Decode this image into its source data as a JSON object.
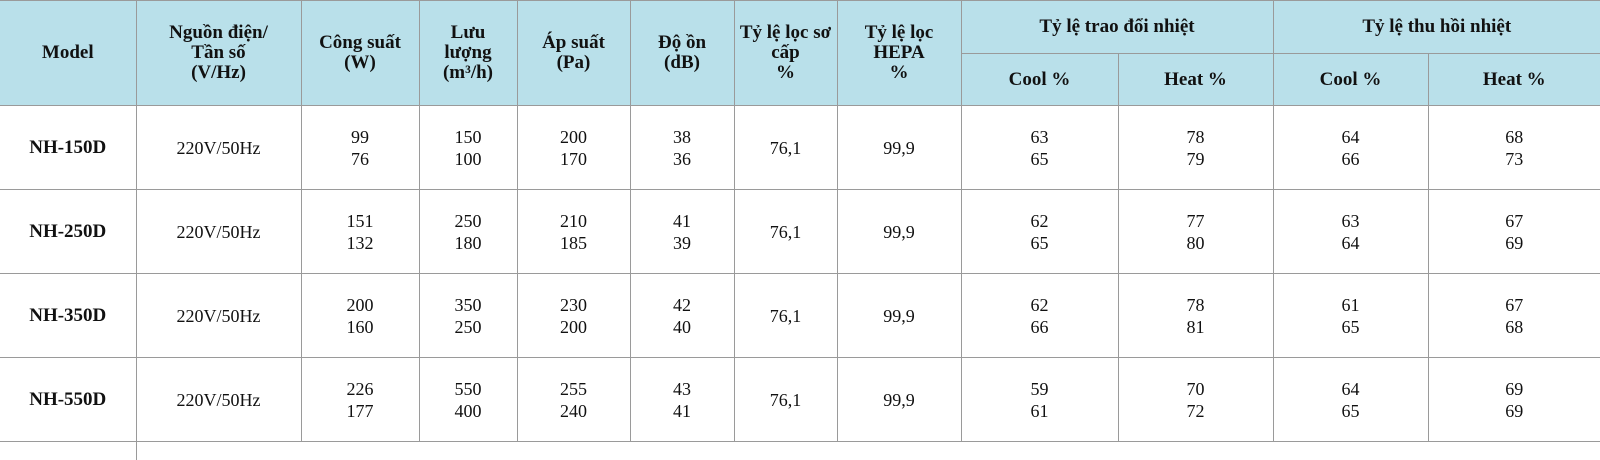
{
  "headers": {
    "model": "Model",
    "power_supply": "Nguồn điện/ Tần số (V/Hz)",
    "power": "Công suất (W)",
    "airflow": "Lưu lượng (m³/h)",
    "pressure": "Áp suất (Pa)",
    "noise": "Độ ồn (dB)",
    "primary_filter": "Tỷ lệ lọc sơ cấp %",
    "hepa_filter": "Tỷ lệ lọc HEPA %",
    "heat_exchange": "Tỷ lệ trao đổi nhiệt",
    "heat_recovery": "Tỷ lệ thu hồi nhiệt",
    "cool": "Cool %",
    "heat": "Heat %"
  },
  "rows": [
    {
      "model": "NH-150D",
      "supply": "220V/50Hz",
      "power": [
        "99",
        "76"
      ],
      "airflow": [
        "150",
        "100"
      ],
      "pressure": [
        "200",
        "170"
      ],
      "noise": [
        "38",
        "36"
      ],
      "primary": "76,1",
      "hepa": "99,9",
      "ex_cool": [
        "63",
        "65"
      ],
      "ex_heat": [
        "78",
        "79"
      ],
      "rec_cool": [
        "64",
        "66"
      ],
      "rec_heat": [
        "68",
        "73"
      ]
    },
    {
      "model": "NH-250D",
      "supply": "220V/50Hz",
      "power": [
        "151",
        "132"
      ],
      "airflow": [
        "250",
        "180"
      ],
      "pressure": [
        "210",
        "185"
      ],
      "noise": [
        "41",
        "39"
      ],
      "primary": "76,1",
      "hepa": "99,9",
      "ex_cool": [
        "62",
        "65"
      ],
      "ex_heat": [
        "77",
        "80"
      ],
      "rec_cool": [
        "63",
        "64"
      ],
      "rec_heat": [
        "67",
        "69"
      ]
    },
    {
      "model": "NH-350D",
      "supply": "220V/50Hz",
      "power": [
        "200",
        "160"
      ],
      "airflow": [
        "350",
        "250"
      ],
      "pressure": [
        "230",
        "200"
      ],
      "noise": [
        "42",
        "40"
      ],
      "primary": "76,1",
      "hepa": "99,9",
      "ex_cool": [
        "62",
        "66"
      ],
      "ex_heat": [
        "78",
        "81"
      ],
      "rec_cool": [
        "61",
        "65"
      ],
      "rec_heat": [
        "67",
        "68"
      ]
    },
    {
      "model": "NH-550D",
      "supply": "220V/50Hz",
      "power": [
        "226",
        "177"
      ],
      "airflow": [
        "550",
        "400"
      ],
      "pressure": [
        "255",
        "240"
      ],
      "noise": [
        "43",
        "41"
      ],
      "primary": "76,1",
      "hepa": "99,9",
      "ex_cool": [
        "59",
        "61"
      ],
      "ex_heat": [
        "70",
        "72"
      ],
      "rec_cool": [
        "64",
        "65"
      ],
      "rec_heat": [
        "69",
        "69"
      ]
    }
  ]
}
